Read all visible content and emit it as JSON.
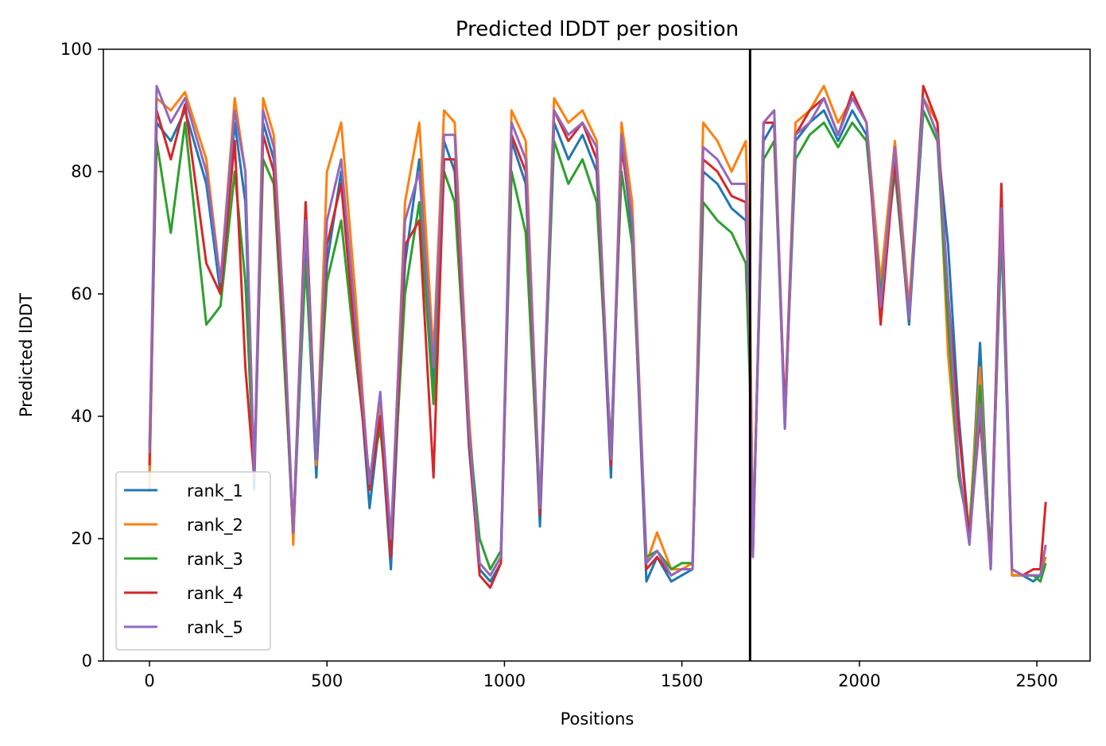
{
  "chart_data": {
    "type": "line",
    "title": "Predicted lDDT per position",
    "xlabel": "Positions",
    "ylabel": "Predicted lDDT",
    "xlim": [
      -130,
      2650
    ],
    "ylim": [
      0,
      100
    ],
    "xticks": [
      0,
      500,
      1000,
      1500,
      2000,
      2500
    ],
    "yticks": [
      0,
      20,
      40,
      60,
      80,
      100
    ],
    "grid": false,
    "legend_position": "lower-left",
    "chain_boundary_x": 1692,
    "x": [
      0,
      20,
      60,
      100,
      160,
      200,
      240,
      270,
      295,
      320,
      350,
      380,
      405,
      440,
      470,
      500,
      540,
      580,
      620,
      650,
      680,
      720,
      760,
      800,
      830,
      860,
      900,
      930,
      960,
      990,
      1020,
      1060,
      1100,
      1140,
      1180,
      1220,
      1260,
      1300,
      1330,
      1360,
      1400,
      1430,
      1470,
      1500,
      1530,
      1560,
      1600,
      1640,
      1680,
      1692,
      1700,
      1730,
      1760,
      1790,
      1820,
      1860,
      1900,
      1940,
      1980,
      2020,
      2060,
      2100,
      2140,
      2180,
      2220,
      2250,
      2280,
      2310,
      2340,
      2370,
      2400,
      2430,
      2460,
      2490,
      2510,
      2525
    ],
    "series": [
      {
        "name": "rank_1",
        "color": "#1f77b4",
        "values": [
          30,
          88,
          85,
          90,
          78,
          60,
          88,
          75,
          28,
          88,
          82,
          50,
          20,
          68,
          30,
          65,
          80,
          55,
          25,
          40,
          15,
          65,
          82,
          45,
          85,
          80,
          35,
          15,
          13,
          16,
          85,
          78,
          22,
          88,
          82,
          86,
          80,
          30,
          85,
          70,
          13,
          17,
          13,
          14,
          15,
          80,
          78,
          74,
          72,
          55,
          18,
          85,
          88,
          38,
          85,
          88,
          90,
          85,
          90,
          86,
          60,
          82,
          55,
          90,
          85,
          68,
          40,
          20,
          52,
          15,
          72,
          14,
          14,
          13,
          14,
          17
        ]
      },
      {
        "name": "rank_2",
        "color": "#ff7f0e",
        "values": [
          28,
          92,
          90,
          93,
          82,
          62,
          92,
          80,
          30,
          92,
          86,
          55,
          19,
          75,
          32,
          80,
          88,
          60,
          28,
          42,
          18,
          75,
          88,
          50,
          90,
          88,
          40,
          16,
          14,
          17,
          90,
          85,
          25,
          92,
          88,
          90,
          85,
          32,
          88,
          75,
          16,
          21,
          15,
          15,
          16,
          88,
          85,
          80,
          85,
          60,
          18,
          88,
          90,
          40,
          88,
          90,
          94,
          88,
          92,
          88,
          62,
          85,
          58,
          92,
          88,
          50,
          30,
          22,
          48,
          16,
          75,
          14,
          14,
          14,
          14,
          17
        ]
      },
      {
        "name": "rank_3",
        "color": "#2ca02c",
        "values": [
          35,
          85,
          70,
          88,
          55,
          58,
          80,
          62,
          30,
          82,
          78,
          48,
          22,
          65,
          33,
          62,
          72,
          50,
          30,
          38,
          20,
          60,
          75,
          42,
          80,
          75,
          38,
          20,
          15,
          18,
          80,
          70,
          24,
          85,
          78,
          82,
          75,
          35,
          80,
          68,
          17,
          18,
          15,
          16,
          16,
          75,
          72,
          70,
          65,
          45,
          20,
          82,
          85,
          40,
          82,
          86,
          88,
          84,
          88,
          85,
          60,
          80,
          56,
          90,
          85,
          55,
          30,
          21,
          45,
          17,
          70,
          15,
          14,
          14,
          13,
          16
        ]
      },
      {
        "name": "rank_4",
        "color": "#d62728",
        "values": [
          32,
          90,
          82,
          91,
          65,
          60,
          85,
          48,
          30,
          86,
          80,
          52,
          21,
          75,
          33,
          68,
          78,
          52,
          28,
          40,
          17,
          68,
          72,
          30,
          82,
          82,
          36,
          14,
          12,
          16,
          86,
          80,
          24,
          90,
          85,
          88,
          82,
          32,
          84,
          72,
          15,
          17,
          14,
          15,
          15,
          82,
          80,
          76,
          75,
          50,
          17,
          88,
          88,
          40,
          86,
          90,
          92,
          86,
          93,
          88,
          55,
          82,
          56,
          94,
          88,
          60,
          38,
          20,
          40,
          16,
          78,
          15,
          14,
          15,
          15,
          26
        ]
      },
      {
        "name": "rank_5",
        "color": "#9467bd",
        "values": [
          34,
          94,
          88,
          92,
          80,
          62,
          90,
          80,
          30,
          90,
          84,
          55,
          21,
          72,
          33,
          72,
          82,
          56,
          29,
          44,
          20,
          72,
          80,
          48,
          86,
          86,
          38,
          16,
          14,
          17,
          88,
          82,
          25,
          90,
          86,
          88,
          84,
          33,
          86,
          72,
          16,
          18,
          14,
          15,
          15,
          84,
          82,
          78,
          78,
          50,
          17,
          88,
          90,
          38,
          86,
          88,
          92,
          86,
          92,
          88,
          58,
          84,
          56,
          92,
          86,
          60,
          32,
          19,
          42,
          15,
          74,
          15,
          14,
          14,
          14,
          19
        ]
      }
    ]
  }
}
